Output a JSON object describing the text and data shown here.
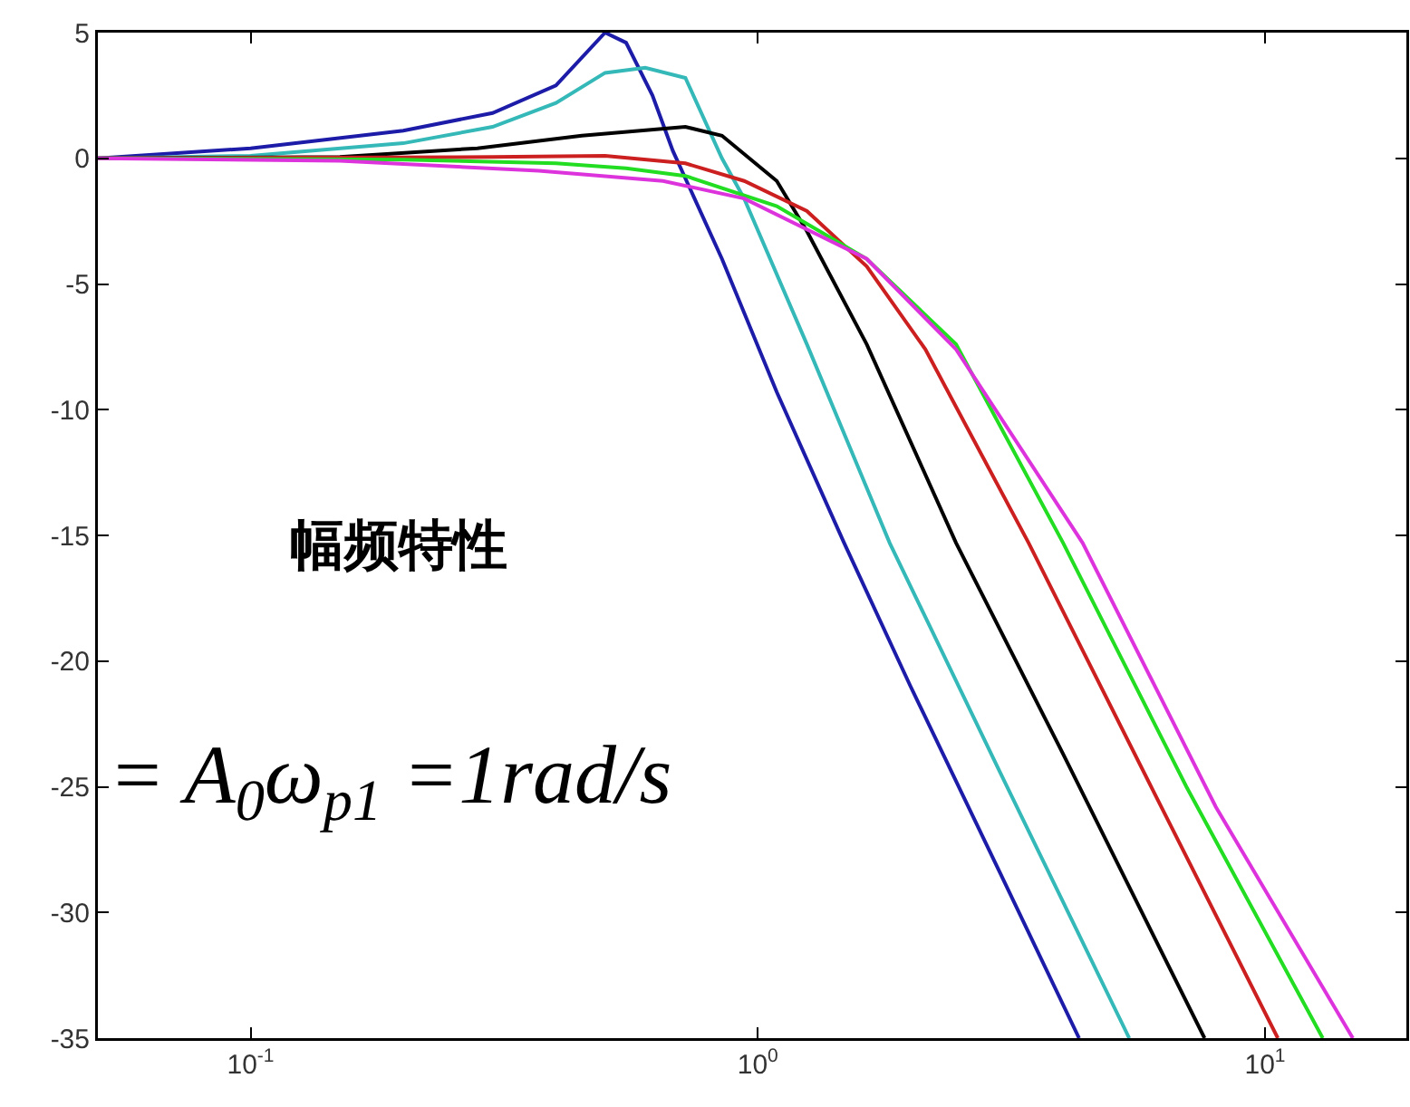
{
  "chart_data": {
    "type": "line",
    "xlim": [
      0.05,
      19
    ],
    "ylim": [
      -35,
      5
    ],
    "xticks": [
      {
        "value": 0.1,
        "label": "10$^{-1}$"
      },
      {
        "value": 1,
        "label": "10$^{0}$"
      },
      {
        "value": 10,
        "label": "10$^{1}$"
      }
    ],
    "yticks": [
      -35,
      -30,
      -25,
      -20,
      -15,
      -10,
      -5,
      0,
      5
    ],
    "log": "x",
    "grid": false,
    "marker": "none",
    "line_style": "solid",
    "annotations": [
      "幅频特性",
      "= A$_{0}$ω$_{p1}$ =1rad/s"
    ],
    "series": [
      {
        "color": "#1c1ca8",
        "x": [
          0.05,
          0.1,
          0.2,
          0.3,
          0.4,
          0.5,
          0.55,
          0.62,
          0.68,
          0.85,
          1.09,
          1.48,
          2,
          3,
          4.3
        ],
        "values": [
          0,
          0.4,
          1.1,
          1.8,
          2.9,
          5,
          4.6,
          2.5,
          0.3,
          -4,
          -9.3,
          -15.3,
          -21,
          -28.4,
          -35
        ]
      },
      {
        "color": "#35b8b8",
        "x": [
          0.05,
          0.1,
          0.2,
          0.3,
          0.4,
          0.5,
          0.6,
          0.72,
          0.85,
          0.94,
          1.25,
          1.82,
          3,
          5.4
        ],
        "values": [
          0,
          0.1,
          0.6,
          1.25,
          2.2,
          3.4,
          3.6,
          3.2,
          0,
          -1.6,
          -7.4,
          -15.3,
          -24.4,
          -35
        ]
      },
      {
        "color": "#000000",
        "x": [
          0.05,
          0.15,
          0.28,
          0.45,
          0.72,
          0.85,
          1.09,
          1.25,
          1.64,
          2.46,
          4,
          7.6
        ],
        "values": [
          0,
          0.05,
          0.4,
          0.9,
          1.25,
          0.9,
          -0.9,
          -2.9,
          -7.4,
          -15.3,
          -23.7,
          -35
        ]
      },
      {
        "color": "#cc2020",
        "x": [
          0.05,
          0.3,
          0.5,
          0.72,
          0.94,
          1.25,
          1.64,
          2.14,
          3.42,
          6,
          10.6
        ],
        "values": [
          0,
          0.05,
          0.1,
          -0.2,
          -0.9,
          -2.1,
          -4.3,
          -7.6,
          -15.3,
          -25.1,
          -35
        ]
      },
      {
        "color": "#22dd22",
        "x": [
          0.05,
          0.2,
          0.4,
          0.55,
          0.72,
          1.09,
          1.64,
          2.46,
          4,
          7,
          13
        ],
        "values": [
          0,
          -0.05,
          -0.2,
          -0.4,
          -0.7,
          -1.9,
          -4,
          -7.4,
          -15.3,
          -25,
          -35
        ]
      },
      {
        "color": "#dd33dd",
        "x": [
          0.05,
          0.15,
          0.37,
          0.65,
          0.94,
          1.64,
          2.46,
          4.37,
          8,
          14.9
        ],
        "values": [
          0,
          -0.1,
          -0.5,
          -0.9,
          -1.6,
          -4,
          -7.6,
          -15.3,
          -25.8,
          -35
        ]
      }
    ]
  }
}
